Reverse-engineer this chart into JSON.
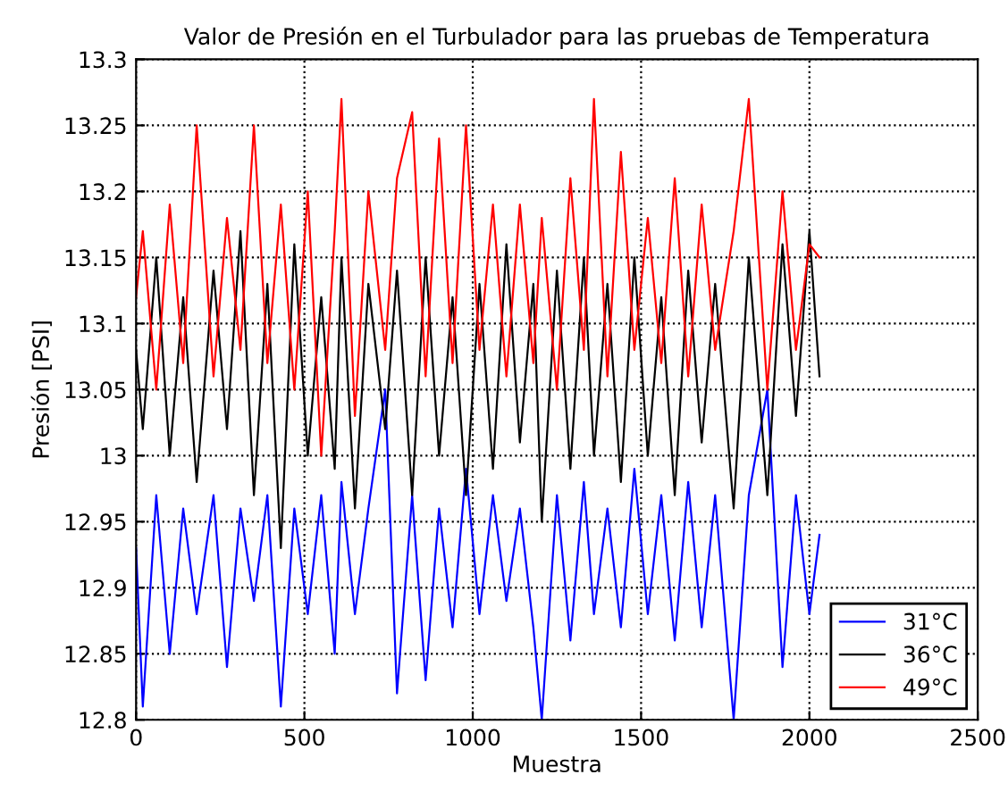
{
  "chart_data": {
    "type": "line",
    "title": "Valor de Presión en el Turbulador para las pruebas de Temperatura",
    "xlabel": "Muestra",
    "ylabel": "Presión [PSI]",
    "x": [
      0,
      20,
      60,
      100,
      140,
      180,
      230,
      270,
      310,
      350,
      390,
      430,
      470,
      510,
      550,
      590,
      610,
      650,
      690,
      740,
      775,
      820,
      860,
      900,
      940,
      980,
      1020,
      1060,
      1100,
      1140,
      1180,
      1205,
      1250,
      1290,
      1330,
      1360,
      1400,
      1440,
      1480,
      1520,
      1560,
      1600,
      1640,
      1680,
      1720,
      1775,
      1820,
      1875,
      1920,
      1960,
      2000,
      2030
    ],
    "series": [
      {
        "name": "31°C",
        "color": "#0000ff",
        "values": [
          12.93,
          12.81,
          12.97,
          12.85,
          12.96,
          12.88,
          12.97,
          12.84,
          12.96,
          12.89,
          12.97,
          12.81,
          12.96,
          12.88,
          12.97,
          12.85,
          12.98,
          12.88,
          12.96,
          13.05,
          12.82,
          12.97,
          12.83,
          12.96,
          12.87,
          12.99,
          12.88,
          12.97,
          12.89,
          12.96,
          12.87,
          12.8,
          12.97,
          12.86,
          12.98,
          12.88,
          12.96,
          12.87,
          12.99,
          12.88,
          12.97,
          12.86,
          12.98,
          12.87,
          12.97,
          12.8,
          12.97,
          13.05,
          12.84,
          12.97,
          12.88,
          12.94
        ]
      },
      {
        "name": "36°C",
        "color": "#000000",
        "values": [
          13.08,
          13.02,
          13.15,
          13.0,
          13.12,
          12.98,
          13.14,
          13.02,
          13.17,
          12.97,
          13.13,
          12.93,
          13.16,
          13.0,
          13.12,
          12.99,
          13.15,
          12.96,
          13.13,
          13.02,
          13.14,
          12.97,
          13.15,
          13.0,
          13.12,
          12.97,
          13.13,
          12.99,
          13.16,
          13.01,
          13.13,
          12.95,
          13.14,
          12.99,
          13.15,
          13.0,
          13.13,
          12.98,
          13.15,
          13.0,
          13.12,
          12.97,
          13.14,
          13.01,
          13.13,
          12.96,
          13.15,
          12.97,
          13.16,
          13.03,
          13.17,
          13.06
        ]
      },
      {
        "name": "49°C",
        "color": "#ff0000",
        "values": [
          13.12,
          13.17,
          13.05,
          13.19,
          13.07,
          13.25,
          13.06,
          13.18,
          13.08,
          13.25,
          13.07,
          13.19,
          13.05,
          13.2,
          13.0,
          13.17,
          13.27,
          13.03,
          13.2,
          13.08,
          13.21,
          13.26,
          13.06,
          13.24,
          13.07,
          13.25,
          13.08,
          13.19,
          13.06,
          13.19,
          13.07,
          13.18,
          13.05,
          13.21,
          13.08,
          13.27,
          13.06,
          13.23,
          13.08,
          13.18,
          13.07,
          13.21,
          13.06,
          13.19,
          13.08,
          13.17,
          13.27,
          13.05,
          13.2,
          13.08,
          13.16,
          13.15
        ]
      }
    ],
    "xlim": [
      0,
      2500
    ],
    "xticks": [
      0,
      500,
      1000,
      1500,
      2000,
      2500
    ],
    "ylim": [
      12.8,
      13.3
    ],
    "yticks": [
      12.8,
      12.85,
      12.9,
      12.95,
      13,
      13.05,
      13.1,
      13.15,
      13.2,
      13.25,
      13.3
    ],
    "grid": true,
    "legend": "bottom right",
    "line_style": "solid",
    "marker": "none"
  }
}
